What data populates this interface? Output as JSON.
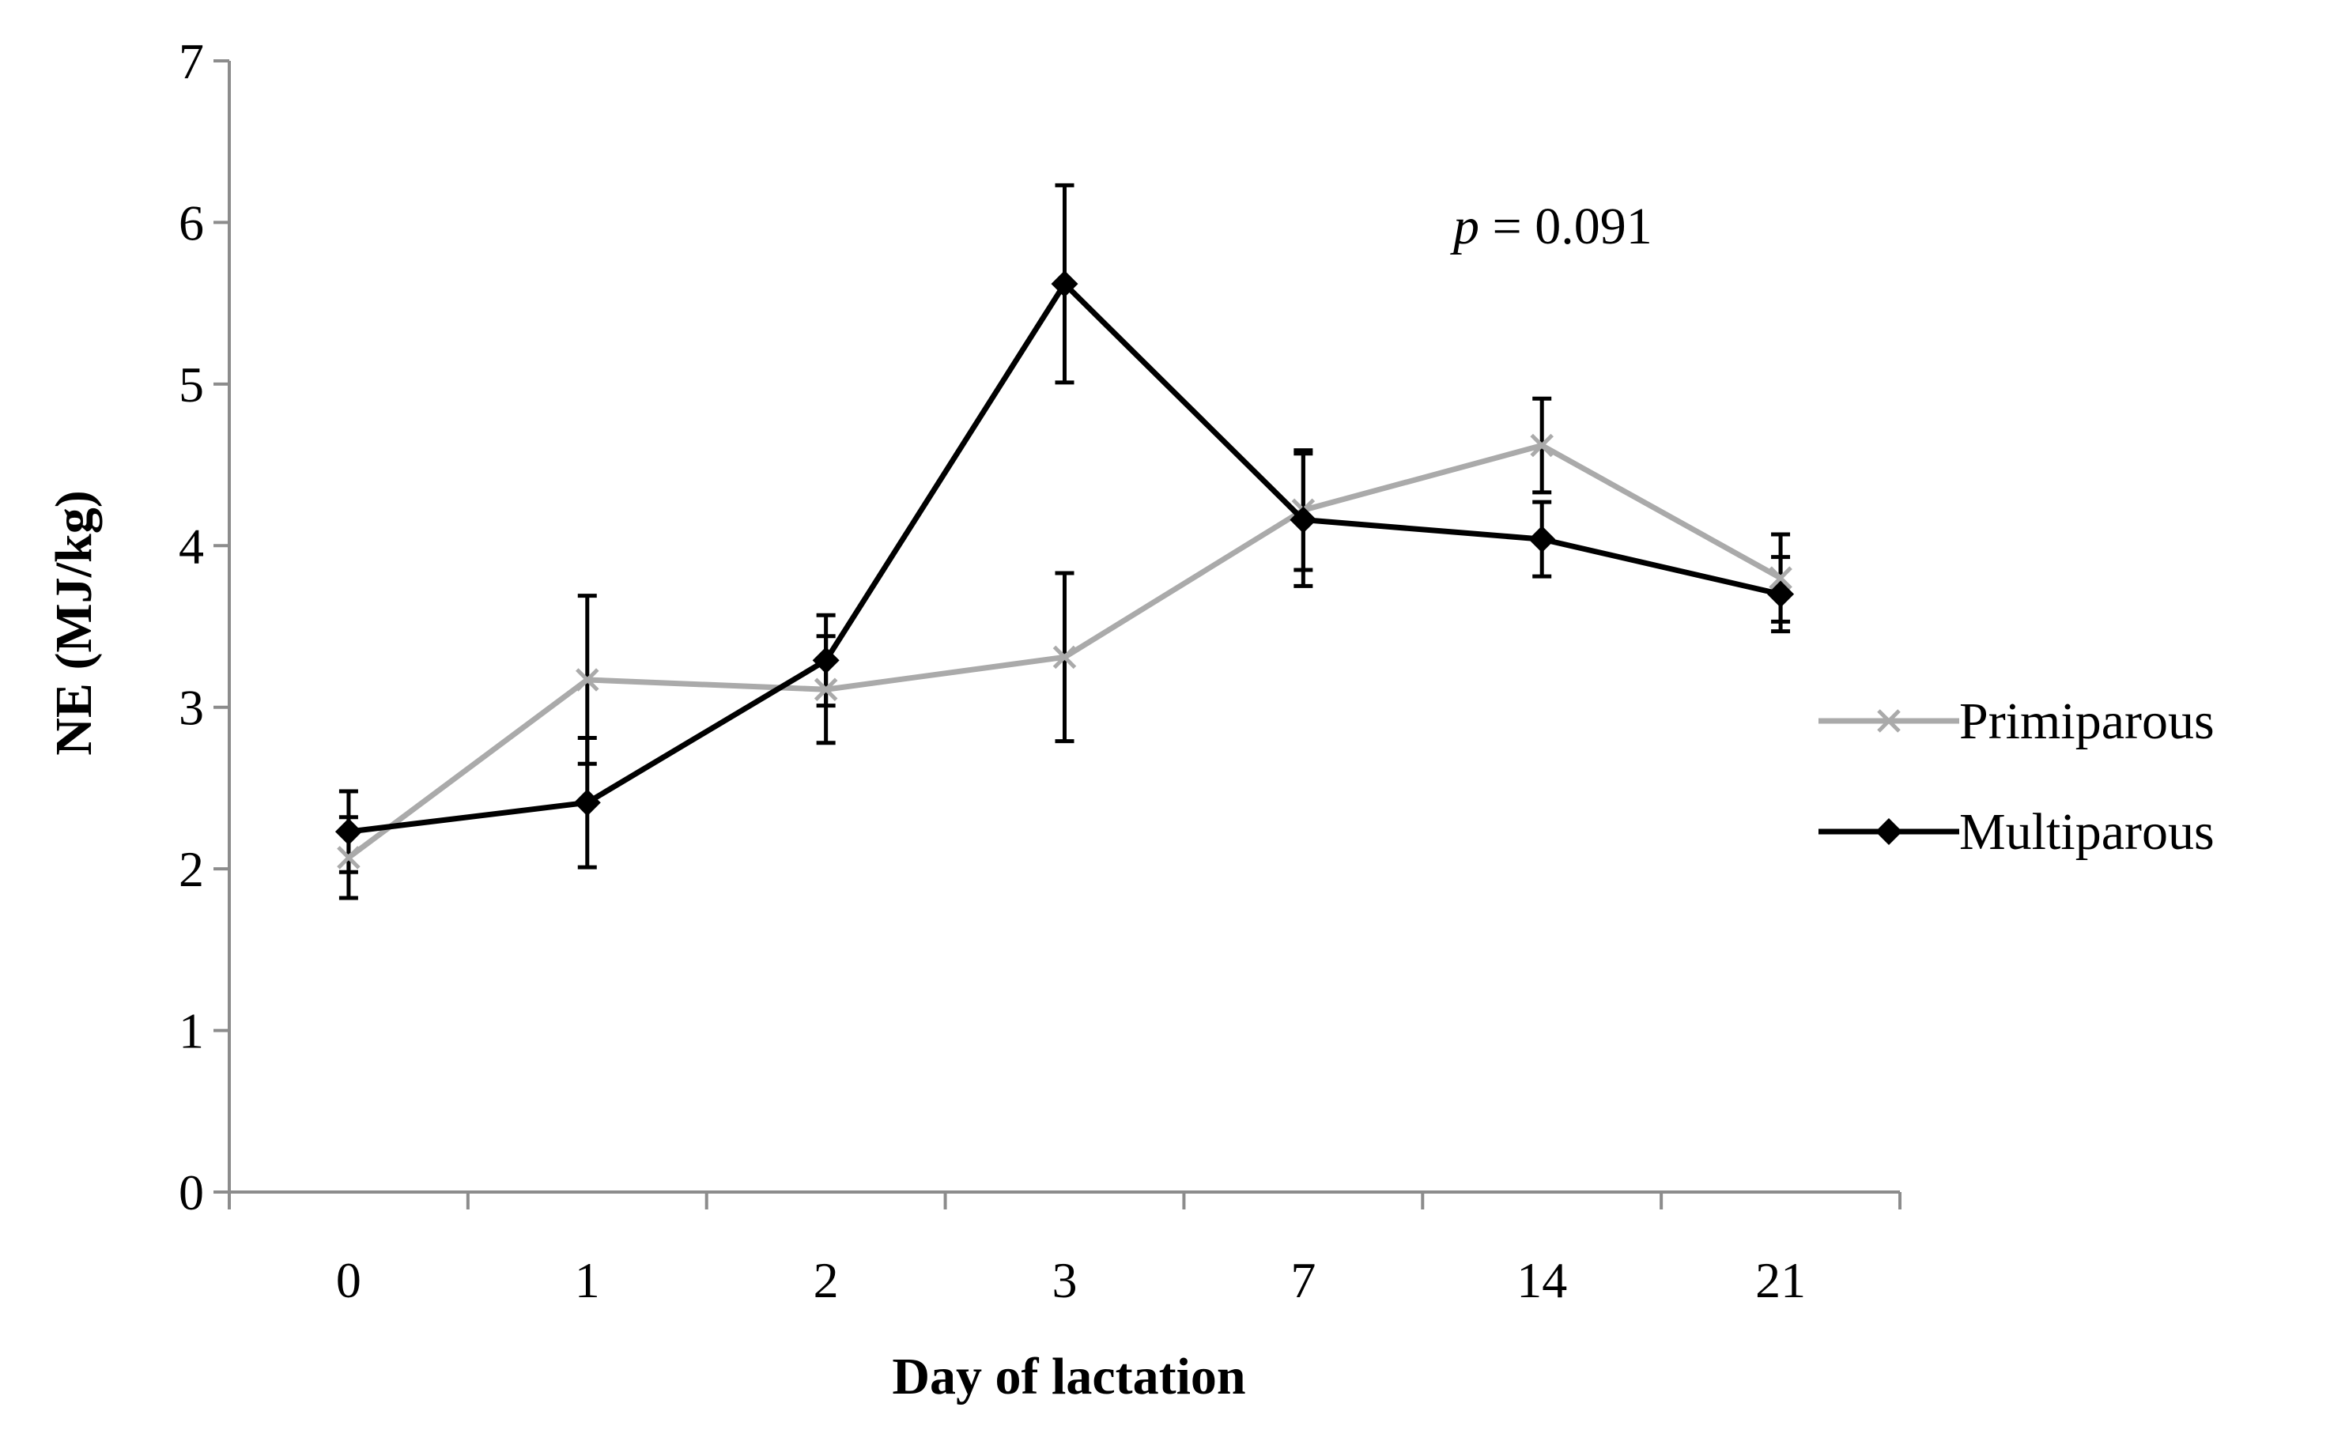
{
  "chart_data": {
    "type": "line",
    "title": "",
    "xlabel": "Day of lactation",
    "ylabel": "NE (MJ/kg)",
    "categories": [
      "0",
      "1",
      "2",
      "3",
      "7",
      "14",
      "21"
    ],
    "ylim": [
      0,
      7
    ],
    "yticks": [
      "0",
      "1",
      "2",
      "3",
      "4",
      "5",
      "6",
      "7"
    ],
    "grid": false,
    "legend_position": "right",
    "annotation": {
      "italic": "p",
      "rest": " = 0.091"
    },
    "series": [
      {
        "name": "Primiparous",
        "color": "#aaaaaa",
        "marker": "x",
        "values": [
          2.07,
          3.17,
          3.11,
          3.31,
          4.22,
          4.62,
          3.8
        ],
        "errors": [
          0.25,
          0.52,
          0.33,
          0.52,
          0.37,
          0.29,
          0.27
        ]
      },
      {
        "name": "Multiparous",
        "color": "#000000",
        "marker": "diamond",
        "values": [
          2.23,
          2.41,
          3.29,
          5.62,
          4.16,
          4.04,
          3.7
        ],
        "errors": [
          0.25,
          0.4,
          0.28,
          0.61,
          0.41,
          0.23,
          0.23
        ]
      }
    ]
  }
}
